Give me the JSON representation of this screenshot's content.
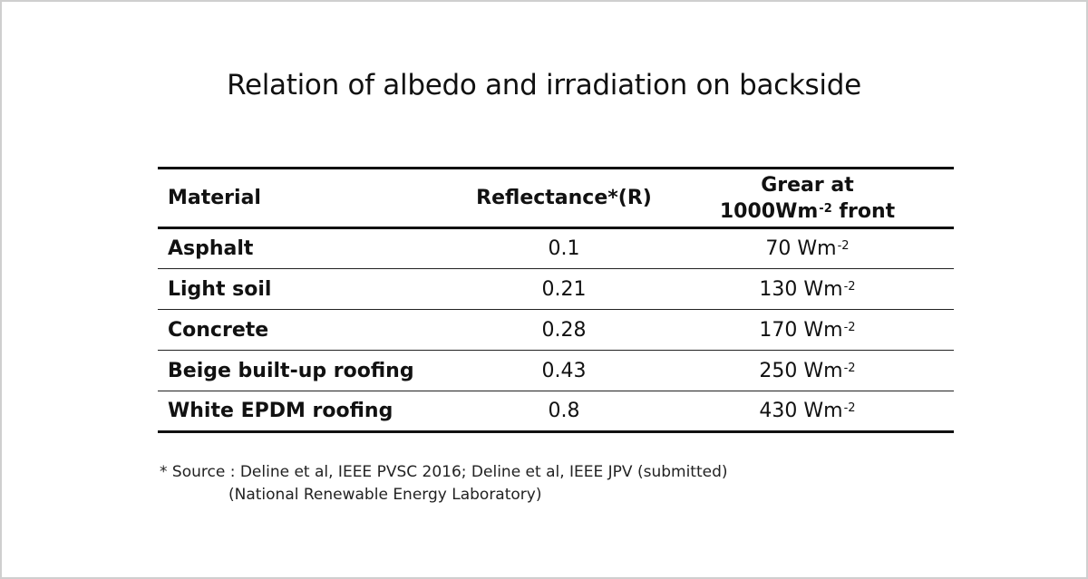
{
  "title": "Relation of albedo and irradiation on backside",
  "table": {
    "headers": {
      "material": "Material",
      "reflectance": "Reflectance*(R)",
      "gear_line1": "Grear at",
      "gear_line2_prefix": "1000Wm",
      "gear_line2_exp": "-2",
      "gear_line2_suffix": " front"
    },
    "unit_base": "Wm",
    "unit_exp": "-2",
    "rows": [
      {
        "material": "Asphalt",
        "reflectance": "0.1",
        "gear_value": "70"
      },
      {
        "material": "Light soil",
        "reflectance": "0.21",
        "gear_value": "130"
      },
      {
        "material": "Concrete",
        "reflectance": "0.28",
        "gear_value": "170"
      },
      {
        "material": "Beige built-up roofing",
        "reflectance": "0.43",
        "gear_value": "250"
      },
      {
        "material": "White EPDM roofing",
        "reflectance": "0.8",
        "gear_value": "430"
      }
    ]
  },
  "footnote": {
    "line1": "* Source : Deline et al, IEEE PVSC 2016; Deline et al, IEEE JPV (submitted)",
    "line2": "(National Renewable Energy Laboratory)"
  }
}
